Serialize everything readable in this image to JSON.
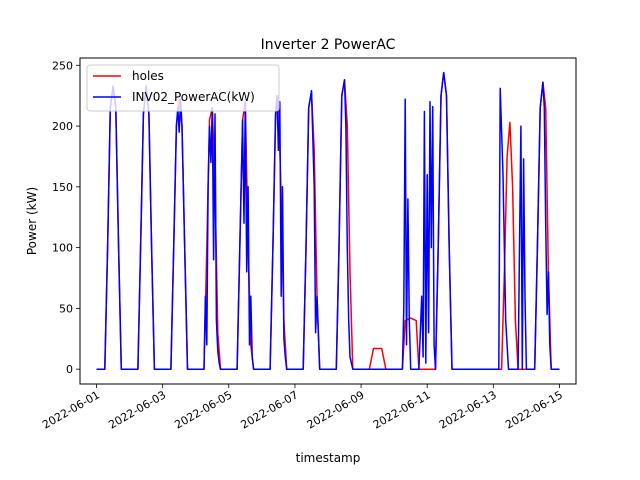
{
  "chart_data": {
    "type": "line",
    "title": "Inverter 2 PowerAC",
    "xlabel": "timestamp",
    "ylabel": "Power (kW)",
    "xlim": [
      "2022-05-31T12:00",
      "2022-06-15T12:00"
    ],
    "ylim": [
      -12.2,
      256
    ],
    "x_ticks": [
      "2022-06-01",
      "2022-06-03",
      "2022-06-05",
      "2022-06-07",
      "2022-06-09",
      "2022-06-11",
      "2022-06-13",
      "2022-06-15"
    ],
    "y_ticks": [
      0,
      50,
      100,
      150,
      200,
      250
    ],
    "grid": false,
    "legend_position": "top-left",
    "colors": {
      "holes": "#ff0000",
      "power": "#0000ff",
      "axes": "#000000",
      "background": "#ffffff"
    },
    "series": [
      {
        "name": "holes",
        "values": [
          [
            "2022-06-01T00:00",
            0
          ],
          [
            "2022-06-01T06:00",
            0
          ],
          [
            "2022-06-01T08:00",
            100
          ],
          [
            "2022-06-01T10:00",
            215
          ],
          [
            "2022-06-01T12:00",
            232
          ],
          [
            "2022-06-01T14:00",
            215
          ],
          [
            "2022-06-01T16:00",
            100
          ],
          [
            "2022-06-01T18:00",
            0
          ],
          [
            "2022-06-02T06:00",
            0
          ],
          [
            "2022-06-02T08:00",
            100
          ],
          [
            "2022-06-02T10:00",
            210
          ],
          [
            "2022-06-02T12:00",
            232
          ],
          [
            "2022-06-02T14:00",
            210
          ],
          [
            "2022-06-02T16:00",
            100
          ],
          [
            "2022-06-02T18:00",
            0
          ],
          [
            "2022-06-03T06:00",
            0
          ],
          [
            "2022-06-03T08:00",
            100
          ],
          [
            "2022-06-03T10:00",
            200
          ],
          [
            "2022-06-03T12:00",
            222
          ],
          [
            "2022-06-03T14:00",
            200
          ],
          [
            "2022-06-03T16:00",
            100
          ],
          [
            "2022-06-03T18:00",
            0
          ],
          [
            "2022-06-04T06:00",
            0
          ],
          [
            "2022-06-04T08:00",
            100
          ],
          [
            "2022-06-04T10:00",
            205
          ],
          [
            "2022-06-04T12:00",
            215
          ],
          [
            "2022-06-04T14:00",
            150
          ],
          [
            "2022-06-04T16:00",
            30
          ],
          [
            "2022-06-04T18:00",
            0
          ],
          [
            "2022-06-05T06:00",
            0
          ],
          [
            "2022-06-05T08:00",
            100
          ],
          [
            "2022-06-05T10:00",
            205
          ],
          [
            "2022-06-05T12:00",
            220
          ],
          [
            "2022-06-05T14:00",
            100
          ],
          [
            "2022-06-05T16:00",
            20
          ],
          [
            "2022-06-05T18:00",
            0
          ],
          [
            "2022-06-06T06:00",
            0
          ],
          [
            "2022-06-06T08:00",
            100
          ],
          [
            "2022-06-06T10:00",
            210
          ],
          [
            "2022-06-06T12:00",
            225
          ],
          [
            "2022-06-06T14:00",
            140
          ],
          [
            "2022-06-06T16:00",
            40
          ],
          [
            "2022-06-06T18:00",
            0
          ],
          [
            "2022-06-07T06:00",
            0
          ],
          [
            "2022-06-07T08:00",
            100
          ],
          [
            "2022-06-07T10:00",
            215
          ],
          [
            "2022-06-07T12:00",
            228
          ],
          [
            "2022-06-07T14:00",
            180
          ],
          [
            "2022-06-07T16:00",
            60
          ],
          [
            "2022-06-07T18:00",
            0
          ],
          [
            "2022-06-08T06:00",
            0
          ],
          [
            "2022-06-08T08:00",
            100
          ],
          [
            "2022-06-08T10:00",
            225
          ],
          [
            "2022-06-08T12:00",
            238
          ],
          [
            "2022-06-08T14:00",
            200
          ],
          [
            "2022-06-08T16:00",
            80
          ],
          [
            "2022-06-08T18:00",
            0
          ],
          [
            "2022-06-09T06:00",
            0
          ],
          [
            "2022-06-09T09:00",
            17
          ],
          [
            "2022-06-09T15:00",
            17
          ],
          [
            "2022-06-09T18:00",
            0
          ],
          [
            "2022-06-10T06:00",
            0
          ],
          [
            "2022-06-10T08:00",
            40
          ],
          [
            "2022-06-10T12:00",
            42
          ],
          [
            "2022-06-10T16:00",
            40
          ],
          [
            "2022-06-10T18:00",
            0
          ],
          [
            "2022-06-11T06:00",
            0
          ],
          [
            "2022-06-11T08:00",
            100
          ],
          [
            "2022-06-11T10:00",
            225
          ],
          [
            "2022-06-11T12:00",
            244
          ],
          [
            "2022-06-11T14:00",
            225
          ],
          [
            "2022-06-11T16:00",
            100
          ],
          [
            "2022-06-11T18:00",
            0
          ],
          [
            "2022-06-12T00:00",
            0
          ],
          [
            "2022-06-12T12:00",
            0
          ],
          [
            "2022-06-12T18:00",
            0
          ],
          [
            "2022-06-13T06:00",
            0
          ],
          [
            "2022-06-13T08:00",
            80
          ],
          [
            "2022-06-13T10:00",
            175
          ],
          [
            "2022-06-13T12:00",
            203
          ],
          [
            "2022-06-13T14:00",
            150
          ],
          [
            "2022-06-13T16:00",
            40
          ],
          [
            "2022-06-13T18:00",
            0
          ],
          [
            "2022-06-14T06:00",
            0
          ],
          [
            "2022-06-14T08:00",
            100
          ],
          [
            "2022-06-14T10:00",
            215
          ],
          [
            "2022-06-14T12:00",
            236
          ],
          [
            "2022-06-14T14:00",
            215
          ],
          [
            "2022-06-14T16:00",
            80
          ],
          [
            "2022-06-14T18:00",
            0
          ],
          [
            "2022-06-15T00:00",
            0
          ]
        ]
      },
      {
        "name": "INV02_PowerAC(kW)",
        "values": [
          [
            "2022-06-01T00:00",
            0
          ],
          [
            "2022-06-01T06:00",
            0
          ],
          [
            "2022-06-01T08:00",
            100
          ],
          [
            "2022-06-01T10:00",
            215
          ],
          [
            "2022-06-01T12:00",
            233
          ],
          [
            "2022-06-01T14:00",
            215
          ],
          [
            "2022-06-01T16:00",
            100
          ],
          [
            "2022-06-01T18:00",
            0
          ],
          [
            "2022-06-02T06:00",
            0
          ],
          [
            "2022-06-02T08:00",
            100
          ],
          [
            "2022-06-02T10:00",
            210
          ],
          [
            "2022-06-02T12:00",
            233
          ],
          [
            "2022-06-02T14:00",
            210
          ],
          [
            "2022-06-02T16:00",
            100
          ],
          [
            "2022-06-02T18:00",
            0
          ],
          [
            "2022-06-03T06:00",
            0
          ],
          [
            "2022-06-03T08:00",
            100
          ],
          [
            "2022-06-03T10:00",
            200
          ],
          [
            "2022-06-03T11:00",
            215
          ],
          [
            "2022-06-03T12:00",
            195
          ],
          [
            "2022-06-03T13:00",
            222
          ],
          [
            "2022-06-03T14:00",
            200
          ],
          [
            "2022-06-03T16:00",
            100
          ],
          [
            "2022-06-03T18:00",
            0
          ],
          [
            "2022-06-04T06:00",
            0
          ],
          [
            "2022-06-04T07:00",
            60
          ],
          [
            "2022-06-04T08:00",
            20
          ],
          [
            "2022-06-04T09:00",
            150
          ],
          [
            "2022-06-04T10:00",
            200
          ],
          [
            "2022-06-04T11:00",
            170
          ],
          [
            "2022-06-04T12:00",
            215
          ],
          [
            "2022-06-04T13:00",
            90
          ],
          [
            "2022-06-04T14:00",
            210
          ],
          [
            "2022-06-04T15:00",
            40
          ],
          [
            "2022-06-04T16:00",
            15
          ],
          [
            "2022-06-04T17:00",
            5
          ],
          [
            "2022-06-04T18:00",
            0
          ],
          [
            "2022-06-05T06:00",
            0
          ],
          [
            "2022-06-05T08:00",
            100
          ],
          [
            "2022-06-05T10:00",
            205
          ],
          [
            "2022-06-05T11:00",
            120
          ],
          [
            "2022-06-05T12:00",
            220
          ],
          [
            "2022-06-05T13:00",
            80
          ],
          [
            "2022-06-05T14:00",
            150
          ],
          [
            "2022-06-05T15:00",
            20
          ],
          [
            "2022-06-05T16:00",
            60
          ],
          [
            "2022-06-05T17:00",
            10
          ],
          [
            "2022-06-05T18:00",
            0
          ],
          [
            "2022-06-06T06:00",
            0
          ],
          [
            "2022-06-06T08:00",
            100
          ],
          [
            "2022-06-06T10:00",
            210
          ],
          [
            "2022-06-06T11:00",
            225
          ],
          [
            "2022-06-06T12:00",
            180
          ],
          [
            "2022-06-06T13:00",
            220
          ],
          [
            "2022-06-06T14:00",
            60
          ],
          [
            "2022-06-06T15:00",
            150
          ],
          [
            "2022-06-06T16:00",
            25
          ],
          [
            "2022-06-06T17:00",
            10
          ],
          [
            "2022-06-06T18:00",
            0
          ],
          [
            "2022-06-07T06:00",
            0
          ],
          [
            "2022-06-07T08:00",
            100
          ],
          [
            "2022-06-07T10:00",
            215
          ],
          [
            "2022-06-07T12:00",
            229
          ],
          [
            "2022-06-07T14:00",
            150
          ],
          [
            "2022-06-07T15:00",
            30
          ],
          [
            "2022-06-07T16:00",
            60
          ],
          [
            "2022-06-07T18:00",
            0
          ],
          [
            "2022-06-08T06:00",
            0
          ],
          [
            "2022-06-08T08:00",
            100
          ],
          [
            "2022-06-08T10:00",
            225
          ],
          [
            "2022-06-08T12:00",
            238
          ],
          [
            "2022-06-08T13:00",
            200
          ],
          [
            "2022-06-08T14:00",
            100
          ],
          [
            "2022-06-08T15:00",
            40
          ],
          [
            "2022-06-08T16:00",
            10
          ],
          [
            "2022-06-08T18:00",
            0
          ],
          [
            "2022-06-09T06:00",
            0
          ],
          [
            "2022-06-09T12:00",
            0
          ],
          [
            "2022-06-09T18:00",
            0
          ],
          [
            "2022-06-10T00:00",
            0
          ],
          [
            "2022-06-10T06:00",
            0
          ],
          [
            "2022-06-10T07:00",
            50
          ],
          [
            "2022-06-10T08:00",
            222
          ],
          [
            "2022-06-10T09:00",
            20
          ],
          [
            "2022-06-10T10:00",
            140
          ],
          [
            "2022-06-10T11:00",
            40
          ],
          [
            "2022-06-10T12:00",
            0
          ],
          [
            "2022-06-10T14:00",
            0
          ],
          [
            "2022-06-10T18:00",
            0
          ],
          [
            "2022-06-10T20:00",
            60
          ],
          [
            "2022-06-10T21:00",
            10
          ],
          [
            "2022-06-10T22:00",
            212
          ],
          [
            "2022-06-10T23:00",
            5
          ],
          [
            "2022-06-11T00:00",
            160
          ],
          [
            "2022-06-11T01:00",
            30
          ],
          [
            "2022-06-11T02:00",
            220
          ],
          [
            "2022-06-11T03:00",
            100
          ],
          [
            "2022-06-11T04:00",
            216
          ],
          [
            "2022-06-11T05:00",
            20
          ],
          [
            "2022-06-11T06:00",
            0
          ],
          [
            "2022-06-11T08:00",
            100
          ],
          [
            "2022-06-11T10:00",
            225
          ],
          [
            "2022-06-11T12:00",
            244
          ],
          [
            "2022-06-11T14:00",
            225
          ],
          [
            "2022-06-11T16:00",
            100
          ],
          [
            "2022-06-11T18:00",
            0
          ],
          [
            "2022-06-13T04:00",
            0
          ],
          [
            "2022-06-13T05:00",
            231
          ],
          [
            "2022-06-13T07:00",
            160
          ],
          [
            "2022-06-13T09:00",
            40
          ],
          [
            "2022-06-13T11:00",
            0
          ],
          [
            "2022-06-13T18:00",
            0
          ],
          [
            "2022-06-13T20:00",
            200
          ],
          [
            "2022-06-13T21:00",
            0
          ],
          [
            "2022-06-13T22:00",
            173
          ],
          [
            "2022-06-13T23:00",
            60
          ],
          [
            "2022-06-14T00:00",
            0
          ],
          [
            "2022-06-14T06:00",
            0
          ],
          [
            "2022-06-14T08:00",
            100
          ],
          [
            "2022-06-14T10:00",
            215
          ],
          [
            "2022-06-14T12:00",
            236
          ],
          [
            "2022-06-14T13:00",
            215
          ],
          [
            "2022-06-14T14:00",
            120
          ],
          [
            "2022-06-14T15:00",
            45
          ],
          [
            "2022-06-14T16:00",
            80
          ],
          [
            "2022-06-14T17:00",
            20
          ],
          [
            "2022-06-14T18:00",
            0
          ],
          [
            "2022-06-15T00:00",
            0
          ]
        ]
      }
    ]
  }
}
